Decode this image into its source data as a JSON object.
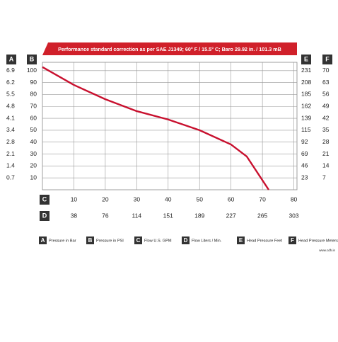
{
  "chart_data": {
    "type": "line",
    "title": "Performance standard correction as per SAE J1349; 60° F / 15.5° C; Baro 29.92 in. / 101.3 mB",
    "x": [
      0,
      10,
      20,
      30,
      40,
      50,
      60,
      65,
      72
    ],
    "series": [
      {
        "color": "#c8102e",
        "values": [
          103,
          88,
          76,
          66,
          59,
          50,
          38,
          28,
          0
        ]
      }
    ],
    "xlim": [
      0,
      81
    ],
    "ylim": [
      0,
      107
    ],
    "xticks": [
      10,
      20,
      30,
      40,
      50,
      60,
      70,
      80
    ],
    "yticks": [
      10,
      20,
      30,
      40,
      50,
      60,
      70,
      80,
      90,
      100
    ],
    "grid": true,
    "axes": [
      {
        "letter": "A",
        "label": "Pressure in Bar",
        "ticks": [
          0.7,
          1.4,
          2.1,
          2.8,
          3.4,
          4.1,
          4.8,
          5.5,
          6.2,
          6.9
        ]
      },
      {
        "letter": "B",
        "label": "Pressure in PSI"
      },
      {
        "letter": "C",
        "label": "Flow U.S. GPM"
      },
      {
        "letter": "D",
        "label": "Flow Liters / Min.",
        "ticks": [
          38,
          76,
          114,
          151,
          189,
          227,
          265,
          303
        ]
      },
      {
        "letter": "E",
        "label": "Head Pressure Feet",
        "ticks": [
          23,
          46,
          69,
          92,
          115,
          139,
          162,
          185,
          208,
          231
        ]
      },
      {
        "letter": "F",
        "label": "Head Pressure Meters",
        "ticks": [
          7,
          14,
          21,
          28,
          35,
          42,
          49,
          56,
          63,
          70
        ]
      }
    ],
    "source": "www.cdh.in"
  }
}
